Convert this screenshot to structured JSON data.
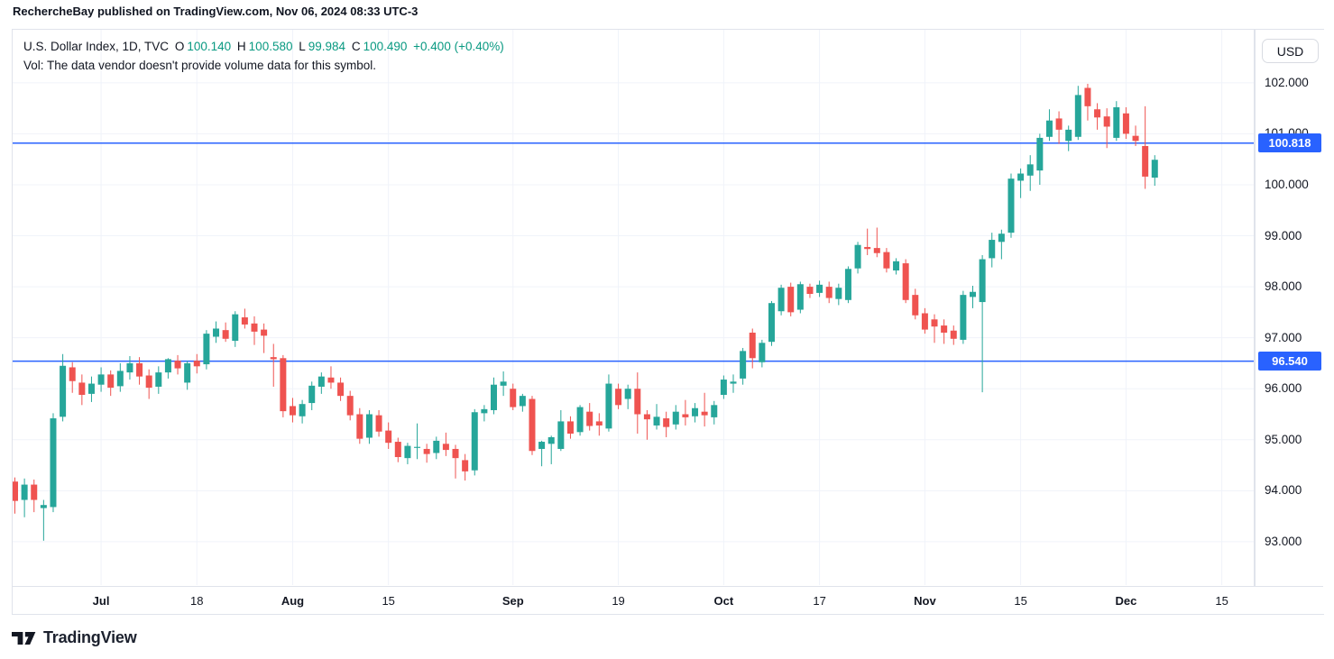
{
  "page": {
    "attribution": "RechercheBay published on TradingView.com, Nov 06, 2024 08:33 UTC-3"
  },
  "legend": {
    "title": "U.S. Dollar Index, 1D, TVC",
    "open_label": "O",
    "open": "100.140",
    "high_label": "H",
    "high": "100.580",
    "low_label": "L",
    "low": "99.984",
    "close_label": "C",
    "close": "100.490",
    "change": "+0.400 (+0.40%)",
    "volume_note": "Vol: The data vendor doesn't provide volume data for this symbol."
  },
  "price_axis": {
    "currency": "USD",
    "ticks": [
      {
        "label": "102.000",
        "value": 102
      },
      {
        "label": "101.000",
        "value": 101
      },
      {
        "label": "100.000",
        "value": 100
      },
      {
        "label": "99.000",
        "value": 99
      },
      {
        "label": "98.000",
        "value": 98
      },
      {
        "label": "97.000",
        "value": 97
      },
      {
        "label": "96.000",
        "value": 96
      },
      {
        "label": "95.000",
        "value": 95
      },
      {
        "label": "94.000",
        "value": 94
      },
      {
        "label": "93.000",
        "value": 93
      }
    ]
  },
  "time_axis": {
    "ticks": [
      {
        "label": "Jul",
        "index": 9,
        "major": true
      },
      {
        "label": "18",
        "index": 19,
        "major": false
      },
      {
        "label": "Aug",
        "index": 29,
        "major": true
      },
      {
        "label": "15",
        "index": 39,
        "major": false
      },
      {
        "label": "Sep",
        "index": 52,
        "major": true
      },
      {
        "label": "19",
        "index": 63,
        "major": false
      },
      {
        "label": "Oct",
        "index": 74,
        "major": true
      },
      {
        "label": "17",
        "index": 84,
        "major": false
      },
      {
        "label": "Nov",
        "index": 95,
        "major": true
      },
      {
        "label": "15",
        "index": 105,
        "major": false
      },
      {
        "label": "Dec",
        "index": 116,
        "major": true
      },
      {
        "label": "15",
        "index": 126,
        "major": false
      }
    ]
  },
  "price_lines": [
    {
      "value": 100.818,
      "label": "100.818"
    },
    {
      "value": 96.54,
      "label": "96.540"
    }
  ],
  "footer": {
    "brand": "TradingView"
  },
  "colors": {
    "up": "#26a69a",
    "down": "#ef5350",
    "accent_blue": "#2962ff",
    "text": "#131722",
    "legend_value": "#089981",
    "grid": "#f0f3fa",
    "border": "#e0e3eb"
  },
  "chart_data": {
    "type": "candlestick",
    "title": "U.S. Dollar Index, 1D, TVC",
    "symbol": "U.S. Dollar Index",
    "interval": "1D",
    "exchange": "TVC",
    "ylabel": "USD",
    "ylim": [
      92.15,
      103.04
    ],
    "grid": true,
    "price_gridlines": [
      102,
      101,
      100,
      99,
      98,
      97,
      96,
      95,
      94,
      93
    ],
    "horizontal_lines": [
      100.818,
      96.54
    ],
    "candles": [
      [
        94.18,
        94.26,
        93.55,
        93.8
      ],
      [
        93.82,
        94.24,
        93.48,
        94.12
      ],
      [
        94.12,
        94.22,
        93.58,
        93.82
      ],
      [
        93.66,
        93.82,
        93.02,
        93.72
      ],
      [
        93.68,
        95.52,
        93.58,
        95.42
      ],
      [
        95.45,
        96.68,
        95.36,
        96.45
      ],
      [
        96.42,
        96.52,
        95.92,
        96.15
      ],
      [
        96.12,
        96.28,
        95.68,
        95.88
      ],
      [
        95.9,
        96.24,
        95.74,
        96.1
      ],
      [
        96.08,
        96.42,
        95.94,
        96.28
      ],
      [
        96.28,
        96.36,
        95.86,
        96.02
      ],
      [
        96.05,
        96.5,
        95.94,
        96.35
      ],
      [
        96.32,
        96.64,
        96.18,
        96.5
      ],
      [
        96.5,
        96.62,
        96.08,
        96.24
      ],
      [
        96.26,
        96.38,
        95.8,
        96.02
      ],
      [
        96.04,
        96.44,
        95.9,
        96.32
      ],
      [
        96.32,
        96.6,
        96.2,
        96.58
      ],
      [
        96.55,
        96.66,
        96.28,
        96.4
      ],
      [
        96.12,
        96.55,
        95.98,
        96.5
      ],
      [
        96.55,
        96.68,
        96.3,
        96.44
      ],
      [
        96.48,
        97.15,
        96.38,
        97.08
      ],
      [
        97.02,
        97.32,
        96.9,
        97.18
      ],
      [
        97.15,
        97.3,
        96.92,
        96.98
      ],
      [
        96.94,
        97.52,
        96.82,
        97.46
      ],
      [
        97.4,
        97.57,
        97.18,
        97.26
      ],
      [
        97.28,
        97.42,
        96.86,
        97.12
      ],
      [
        97.16,
        97.28,
        96.7,
        97.04
      ],
      [
        96.62,
        96.88,
        96.04,
        96.58
      ],
      [
        96.6,
        96.66,
        95.44,
        95.56
      ],
      [
        95.66,
        95.82,
        95.34,
        95.48
      ],
      [
        95.46,
        95.78,
        95.32,
        95.7
      ],
      [
        95.72,
        96.14,
        95.58,
        96.06
      ],
      [
        96.04,
        96.32,
        95.9,
        96.24
      ],
      [
        96.22,
        96.44,
        96.0,
        96.12
      ],
      [
        96.12,
        96.22,
        95.76,
        95.86
      ],
      [
        95.86,
        95.96,
        95.38,
        95.48
      ],
      [
        95.5,
        95.62,
        94.92,
        95.02
      ],
      [
        95.04,
        95.58,
        94.92,
        95.5
      ],
      [
        95.48,
        95.58,
        95.06,
        95.16
      ],
      [
        95.18,
        95.34,
        94.82,
        94.94
      ],
      [
        94.96,
        95.04,
        94.56,
        94.66
      ],
      [
        94.64,
        94.94,
        94.52,
        94.88
      ],
      [
        94.84,
        95.32,
        94.62,
        94.86
      ],
      [
        94.82,
        94.92,
        94.55,
        94.72
      ],
      [
        94.74,
        95.06,
        94.62,
        94.98
      ],
      [
        94.92,
        95.14,
        94.68,
        94.8
      ],
      [
        94.82,
        94.9,
        94.24,
        94.64
      ],
      [
        94.6,
        94.72,
        94.2,
        94.38
      ],
      [
        94.4,
        95.6,
        94.3,
        95.54
      ],
      [
        95.52,
        95.68,
        95.36,
        95.6
      ],
      [
        95.58,
        96.22,
        95.5,
        96.08
      ],
      [
        96.06,
        96.34,
        95.86,
        96.14
      ],
      [
        96.0,
        96.1,
        95.58,
        95.64
      ],
      [
        95.66,
        95.9,
        95.55,
        95.86
      ],
      [
        95.8,
        95.86,
        94.7,
        94.78
      ],
      [
        94.82,
        94.98,
        94.48,
        94.96
      ],
      [
        94.92,
        95.08,
        94.52,
        95.05
      ],
      [
        94.82,
        95.58,
        94.78,
        95.36
      ],
      [
        95.36,
        95.46,
        95.02,
        95.12
      ],
      [
        95.15,
        95.68,
        95.08,
        95.64
      ],
      [
        95.55,
        95.72,
        95.18,
        95.27
      ],
      [
        95.36,
        95.52,
        95.08,
        95.28
      ],
      [
        95.22,
        96.28,
        95.16,
        96.1
      ],
      [
        96.0,
        96.1,
        95.6,
        95.68
      ],
      [
        95.8,
        96.08,
        95.6,
        96.0
      ],
      [
        96.0,
        96.32,
        95.12,
        95.5
      ],
      [
        95.5,
        95.58,
        95.0,
        95.4
      ],
      [
        95.28,
        95.7,
        95.2,
        95.45
      ],
      [
        95.42,
        95.55,
        95.05,
        95.25
      ],
      [
        95.3,
        95.68,
        95.2,
        95.55
      ],
      [
        95.5,
        95.78,
        95.28,
        95.44
      ],
      [
        95.46,
        95.72,
        95.34,
        95.62
      ],
      [
        95.55,
        95.92,
        95.26,
        95.48
      ],
      [
        95.44,
        95.76,
        95.3,
        95.68
      ],
      [
        95.88,
        96.26,
        95.8,
        96.18
      ],
      [
        96.1,
        96.28,
        95.92,
        96.14
      ],
      [
        96.2,
        96.8,
        96.08,
        96.74
      ],
      [
        97.1,
        97.18,
        96.4,
        96.6
      ],
      [
        96.52,
        96.96,
        96.42,
        96.9
      ],
      [
        96.92,
        97.72,
        96.84,
        97.68
      ],
      [
        97.52,
        98.04,
        97.44,
        97.98
      ],
      [
        98.0,
        98.08,
        97.42,
        97.5
      ],
      [
        97.55,
        98.1,
        97.48,
        98.05
      ],
      [
        98.0,
        98.06,
        97.78,
        97.86
      ],
      [
        97.88,
        98.12,
        97.8,
        98.04
      ],
      [
        98.0,
        98.1,
        97.68,
        97.78
      ],
      [
        97.76,
        98.06,
        97.64,
        97.98
      ],
      [
        97.74,
        98.4,
        97.68,
        98.35
      ],
      [
        98.36,
        98.88,
        98.26,
        98.82
      ],
      [
        98.78,
        99.14,
        98.62,
        98.74
      ],
      [
        98.76,
        99.16,
        98.58,
        98.66
      ],
      [
        98.68,
        98.76,
        98.28,
        98.36
      ],
      [
        98.32,
        98.56,
        98.24,
        98.5
      ],
      [
        98.46,
        98.54,
        97.68,
        97.74
      ],
      [
        97.84,
        97.96,
        97.36,
        97.44
      ],
      [
        97.48,
        97.58,
        97.08,
        97.16
      ],
      [
        97.36,
        97.46,
        96.9,
        97.22
      ],
      [
        97.24,
        97.36,
        96.88,
        97.1
      ],
      [
        97.14,
        97.24,
        96.86,
        96.98
      ],
      [
        96.96,
        97.92,
        96.88,
        97.84
      ],
      [
        97.8,
        98.02,
        97.58,
        97.9
      ],
      [
        97.7,
        98.62,
        95.93,
        98.54
      ],
      [
        98.56,
        99.06,
        98.38,
        98.92
      ],
      [
        98.88,
        99.12,
        98.54,
        99.04
      ],
      [
        99.06,
        100.22,
        98.96,
        100.12
      ],
      [
        100.08,
        100.32,
        99.74,
        100.22
      ],
      [
        100.18,
        100.58,
        99.88,
        100.4
      ],
      [
        100.28,
        101.0,
        100.0,
        100.92
      ],
      [
        100.94,
        101.48,
        100.86,
        101.26
      ],
      [
        101.3,
        101.44,
        100.8,
        101.08
      ],
      [
        100.86,
        101.16,
        100.66,
        101.08
      ],
      [
        100.94,
        101.94,
        100.88,
        101.76
      ],
      [
        101.9,
        101.98,
        101.26,
        101.54
      ],
      [
        101.48,
        101.6,
        101.08,
        101.32
      ],
      [
        101.34,
        101.5,
        100.72,
        101.14
      ],
      [
        100.92,
        101.64,
        100.86,
        101.52
      ],
      [
        101.4,
        101.52,
        100.9,
        101.0
      ],
      [
        100.96,
        101.16,
        100.76,
        100.86
      ],
      [
        100.76,
        101.54,
        99.92,
        100.16
      ],
      [
        100.14,
        100.58,
        99.98,
        100.49
      ]
    ]
  }
}
